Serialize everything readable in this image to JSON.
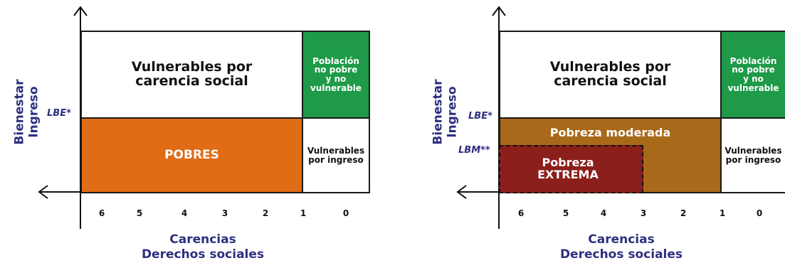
{
  "colors": {
    "pobres": "#e06c16",
    "green": "#1e9a49",
    "moderada": "#a8691a",
    "extrema": "#8b1f1c",
    "axis_text": "#2e2f7f"
  },
  "left": {
    "y_title_1": "Bienestar",
    "y_title_2": "Ingreso",
    "lbe": "LBE*",
    "vulnerables_carencia": "Vulnerables por\ncarencia social",
    "no_pobre": "Población\nno pobre\ny no\nvulnerable",
    "pobres": "POBRES",
    "vulnerables_ingreso": "Vulnerables\npor ingreso",
    "ticks": [
      "6",
      "5",
      "4",
      "3",
      "2",
      "1",
      "0"
    ],
    "x_title_1": "Carencias",
    "x_title_2": "Derechos sociales"
  },
  "right": {
    "y_title_1": "Bienestar",
    "y_title_2": "Ingreso",
    "lbe": "LBE*",
    "lbm": "LBM**",
    "vulnerables_carencia": "Vulnerables por\ncarencia social",
    "no_pobre": "Población\nno pobre\ny no\nvulnerable",
    "moderada": "Pobreza moderada",
    "extrema": "Pobreza\nEXTREMA",
    "vulnerables_ingreso": "Vulnerables\npor ingreso",
    "ticks": [
      "6",
      "5",
      "4",
      "3",
      "2",
      "1",
      "0"
    ],
    "x_title_1": "Carencias",
    "x_title_2": "Derechos sociales"
  }
}
